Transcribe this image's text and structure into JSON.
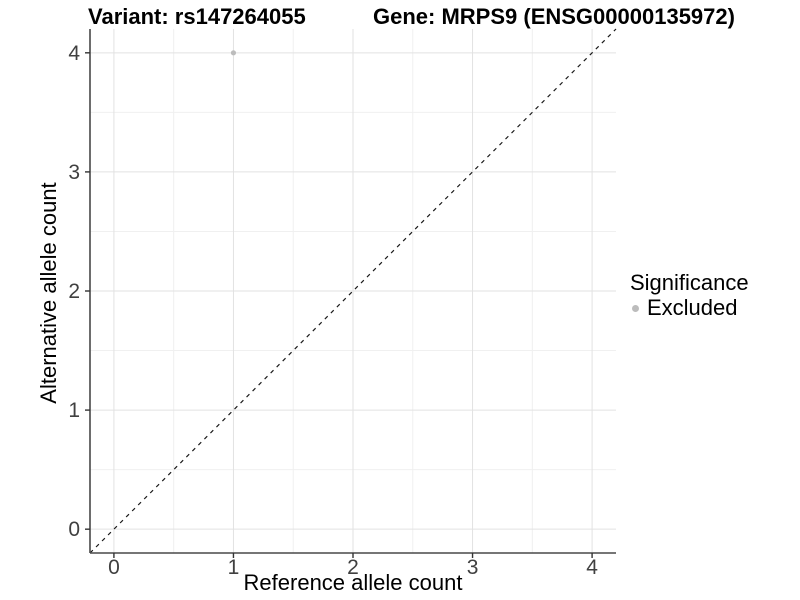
{
  "colors": {
    "background": "#ffffff",
    "point": "#bcbcbc",
    "grid_major": "#e2e2e2",
    "grid_minor": "#f0f0f0",
    "axis_line": "#484848",
    "tick_mark": "#333333",
    "tick_label": "#404040",
    "text": "#000000",
    "dashed_line": "#1a1a1a"
  },
  "chart_data": {
    "type": "scatter",
    "titles": {
      "left": "Variant: rs147264055",
      "right": "Gene: MRPS9 (ENSG00000135972)"
    },
    "xlabel": "Reference allele count",
    "ylabel": "Alternative allele count",
    "xlim": [
      -0.2,
      4.2
    ],
    "ylim": [
      -0.2,
      4.2
    ],
    "x_ticks": [
      0,
      1,
      2,
      3,
      4
    ],
    "y_ticks": [
      0,
      1,
      2,
      3,
      4
    ],
    "x_minor": [
      0.5,
      1.5,
      2.5,
      3.5
    ],
    "y_minor": [
      0.5,
      1.5,
      2.5,
      3.5
    ],
    "grid": "on",
    "points": [
      {
        "x": 1,
        "y": 4,
        "series": "Excluded"
      }
    ],
    "diagonal": {
      "slope": 1,
      "intercept": 0,
      "style": "dashed"
    },
    "legend": {
      "title": "Significance",
      "position": "right",
      "entries": [
        {
          "label": "Excluded",
          "color": "#bcbcbc"
        }
      ]
    }
  }
}
